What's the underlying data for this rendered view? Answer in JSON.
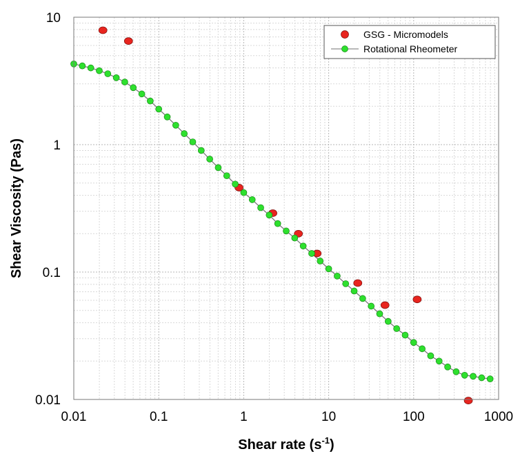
{
  "chart_data": {
    "type": "scatter",
    "xscale": "log",
    "yscale": "log",
    "xlim": [
      0.01,
      1000
    ],
    "ylim": [
      0.01,
      10
    ],
    "xlabel": "Shear rate (s",
    "xlabel_sup": "-1",
    "xlabel_end": ")",
    "ylabel": "Shear Viscosity (Pas)",
    "x_ticks": [
      "0.01",
      "0.1",
      "1",
      "10",
      "100",
      "1000"
    ],
    "y_ticks": [
      "0.01",
      "0.1",
      "1",
      "10"
    ],
    "grid": true,
    "legend_position": "top-right",
    "colors": {
      "red": "#e8251f",
      "green": "#2ee02e",
      "line": "#707070"
    },
    "series": [
      {
        "name": "GSG - Micromodels",
        "marker": "red-circle",
        "x": [
          0.022,
          0.044,
          0.88,
          2.2,
          4.4,
          7.3,
          22,
          46,
          110,
          440
        ],
        "y": [
          7.9,
          6.5,
          0.46,
          0.29,
          0.2,
          0.14,
          0.082,
          0.055,
          0.061,
          0.0098
        ]
      },
      {
        "name": "Rotational Rheometer",
        "marker": "green-circle-line",
        "x": [
          0.01,
          0.01259,
          0.01585,
          0.01995,
          0.02512,
          0.03162,
          0.03981,
          0.05012,
          0.0631,
          0.07943,
          0.1,
          0.1259,
          0.1585,
          0.1995,
          0.2512,
          0.3162,
          0.3981,
          0.5012,
          0.631,
          0.7943,
          1,
          1.259,
          1.585,
          1.995,
          2.512,
          3.162,
          3.981,
          5.012,
          6.31,
          7.943,
          10,
          12.59,
          15.85,
          19.95,
          25.12,
          31.62,
          39.81,
          50.12,
          63.1,
          79.43,
          100,
          125.9,
          158.5,
          199.5,
          251.2,
          316.2,
          398.1,
          501.2,
          631,
          794.3
        ],
        "y": [
          4.3,
          4.15,
          4.0,
          3.8,
          3.6,
          3.35,
          3.1,
          2.8,
          2.5,
          2.2,
          1.9,
          1.65,
          1.42,
          1.22,
          1.05,
          0.9,
          0.77,
          0.66,
          0.57,
          0.49,
          0.42,
          0.37,
          0.32,
          0.28,
          0.24,
          0.21,
          0.185,
          0.16,
          0.14,
          0.122,
          0.106,
          0.093,
          0.081,
          0.071,
          0.062,
          0.054,
          0.047,
          0.041,
          0.036,
          0.032,
          0.028,
          0.025,
          0.022,
          0.02,
          0.018,
          0.0165,
          0.0155,
          0.0152,
          0.0148,
          0.0145
        ]
      }
    ]
  }
}
